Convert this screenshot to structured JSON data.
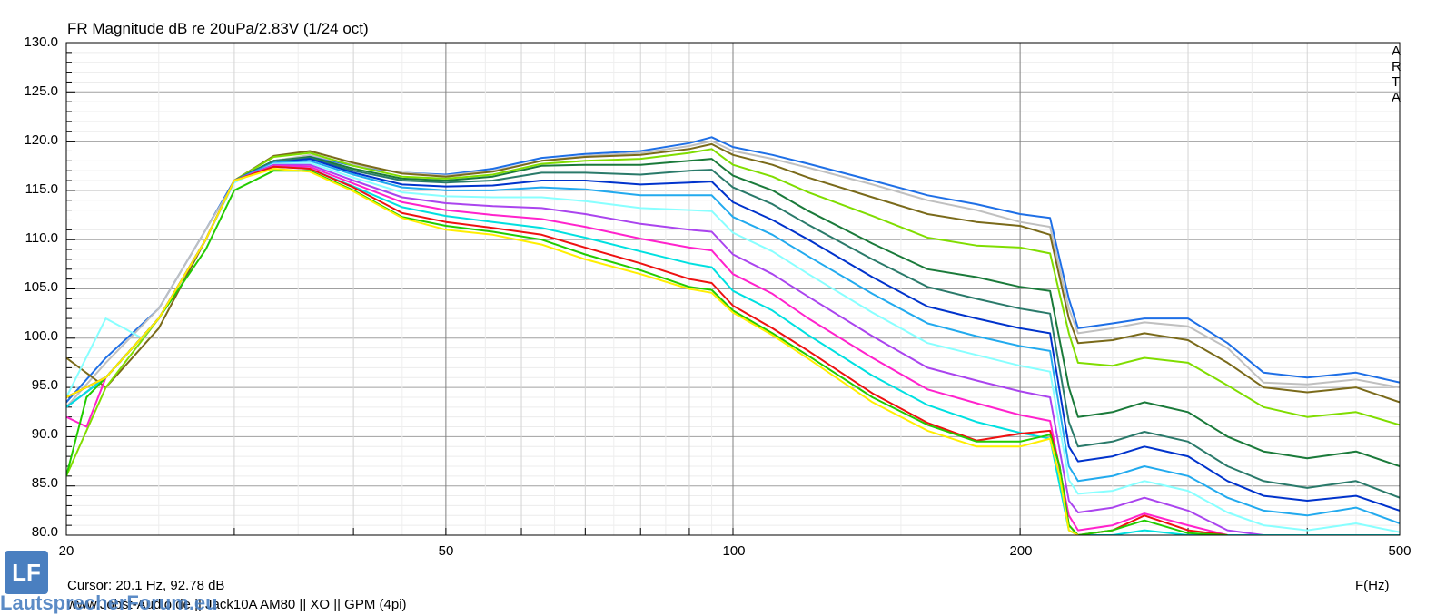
{
  "chart_data": {
    "type": "line",
    "title": "FR Magnitude dB re 20uPa/2.83V (1/24 oct)",
    "xlabel": "F(Hz)",
    "xscale": "log",
    "xlim": [
      20,
      500
    ],
    "ylim": [
      80,
      130
    ],
    "yticks": [
      "130.0",
      "125.0",
      "120.0",
      "115.0",
      "110.0",
      "105.0",
      "100.0",
      "95.0",
      "90.0",
      "85.0",
      "80.0"
    ],
    "xticks": [
      "20",
      "50",
      "100",
      "200",
      "500"
    ],
    "grid": true,
    "series": [
      {
        "color": "#1e6fe6",
        "x": [
          20,
          22,
          25,
          28,
          30,
          33,
          36,
          40,
          45,
          50,
          56,
          63,
          70,
          80,
          90,
          95,
          100,
          110,
          120,
          140,
          160,
          180,
          200,
          215,
          225,
          230,
          250,
          270,
          300,
          330,
          360,
          400,
          450,
          500
        ],
        "y": [
          93.5,
          98,
          103,
          111,
          116,
          118,
          118.5,
          117.5,
          116.8,
          116.6,
          117.2,
          118.3,
          118.7,
          119,
          119.8,
          120.4,
          119.4,
          118.6,
          117.7,
          116,
          114.5,
          113.6,
          112.6,
          112.2,
          104,
          101,
          101.5,
          102,
          102,
          99.5,
          96.5,
          96,
          96.5,
          95.5
        ]
      },
      {
        "color": "#c0c0c0",
        "x": [
          20,
          22,
          25,
          28,
          30,
          33,
          36,
          40,
          45,
          50,
          56,
          63,
          70,
          80,
          90,
          95,
          100,
          110,
          120,
          140,
          160,
          180,
          200,
          215,
          225,
          230,
          250,
          270,
          300,
          330,
          360,
          400,
          450,
          500
        ],
        "y": [
          93,
          97.5,
          103,
          111,
          115.8,
          118,
          118.6,
          117.6,
          116.8,
          116.5,
          117,
          118,
          118.5,
          118.8,
          119.5,
          120,
          119,
          118.2,
          117.3,
          115.6,
          114,
          113,
          111.8,
          111.3,
          103,
          100.5,
          101,
          101.6,
          101.2,
          99,
          95.5,
          95.3,
          95.8,
          95
        ]
      },
      {
        "color": "#7a6a1a",
        "x": [
          20,
          22,
          25,
          28,
          30,
          33,
          36,
          40,
          45,
          50,
          56,
          63,
          70,
          80,
          90,
          95,
          100,
          110,
          120,
          140,
          160,
          180,
          200,
          215,
          225,
          230,
          250,
          270,
          300,
          330,
          360,
          400,
          450,
          500
        ],
        "y": [
          98,
          95,
          101,
          110,
          116,
          118.5,
          119,
          117.8,
          116.7,
          116.4,
          116.9,
          118,
          118.4,
          118.6,
          119.2,
          119.7,
          118.6,
          117.6,
          116.3,
          114.3,
          112.6,
          111.8,
          111.4,
          110.5,
          102,
          99.5,
          99.8,
          100.5,
          99.8,
          97.5,
          95,
          94.5,
          95,
          93.5
        ]
      },
      {
        "color": "#80dd00",
        "x": [
          20,
          22,
          25,
          28,
          30,
          33,
          36,
          40,
          45,
          50,
          56,
          63,
          70,
          80,
          90,
          95,
          100,
          110,
          120,
          140,
          160,
          180,
          200,
          215,
          225,
          230,
          250,
          270,
          300,
          330,
          360,
          400,
          450,
          500
        ],
        "y": [
          86,
          95,
          102,
          110,
          116,
          118.4,
          118.8,
          117.5,
          116.4,
          116.2,
          116.6,
          117.7,
          118,
          118.2,
          118.8,
          119.2,
          117.6,
          116.4,
          114.8,
          112.4,
          110.2,
          109.4,
          109.2,
          108.6,
          100.5,
          97.5,
          97.2,
          98,
          97.5,
          95.2,
          93,
          92,
          92.5,
          91.2
        ]
      },
      {
        "color": "#1a7a3a",
        "x": [
          20,
          22,
          25,
          28,
          30,
          33,
          36,
          40,
          45,
          50,
          56,
          63,
          70,
          80,
          90,
          95,
          100,
          110,
          120,
          140,
          160,
          180,
          200,
          215,
          225,
          230,
          250,
          270,
          300,
          330,
          360,
          400,
          450,
          500
        ],
        "y": [
          94,
          96,
          102,
          110,
          116,
          118,
          118.4,
          117.2,
          116.2,
          116,
          116.4,
          117.5,
          117.6,
          117.6,
          118,
          118.2,
          116.5,
          115,
          112.9,
          109.6,
          107,
          106.2,
          105.2,
          104.8,
          95,
          92,
          92.5,
          93.5,
          92.5,
          90,
          88.5,
          87.8,
          88.5,
          87
        ]
      },
      {
        "color": "#2a7a6a",
        "x": [
          20,
          22,
          25,
          28,
          30,
          33,
          36,
          40,
          45,
          50,
          56,
          63,
          70,
          80,
          90,
          95,
          100,
          110,
          120,
          140,
          160,
          180,
          200,
          215,
          225,
          230,
          250,
          270,
          300,
          330,
          360,
          400,
          450,
          500
        ],
        "y": [
          94,
          96,
          102,
          110,
          116,
          118,
          118.3,
          117,
          116,
          115.8,
          116,
          116.8,
          116.8,
          116.6,
          117,
          117.1,
          115.3,
          113.6,
          111.5,
          108,
          105.2,
          104,
          103,
          102.5,
          91.5,
          89,
          89.5,
          90.5,
          89.5,
          87,
          85.5,
          84.8,
          85.5,
          83.8
        ]
      },
      {
        "color": "#0033cc",
        "x": [
          20,
          22,
          25,
          28,
          30,
          33,
          36,
          40,
          45,
          50,
          56,
          63,
          70,
          80,
          90,
          95,
          100,
          110,
          120,
          140,
          160,
          180,
          200,
          215,
          225,
          230,
          250,
          270,
          300,
          330,
          360,
          400,
          450,
          500
        ],
        "y": [
          94,
          96,
          102,
          110,
          116,
          117.8,
          118.2,
          116.8,
          115.6,
          115.4,
          115.5,
          116,
          116,
          115.6,
          115.8,
          115.9,
          113.8,
          112,
          110,
          106.2,
          103.2,
          102,
          101,
          100.5,
          89,
          87.5,
          88,
          89,
          88,
          85.5,
          84,
          83.5,
          84,
          82.5
        ]
      },
      {
        "color": "#22aaee",
        "x": [
          20,
          22,
          25,
          28,
          30,
          33,
          36,
          40,
          45,
          50,
          56,
          63,
          70,
          80,
          90,
          95,
          100,
          110,
          120,
          140,
          160,
          180,
          200,
          215,
          225,
          230,
          250,
          270,
          300,
          330,
          360,
          400,
          450,
          500
        ],
        "y": [
          93,
          96,
          102,
          110,
          116,
          117.8,
          118,
          116.6,
          115.3,
          115,
          115,
          115.3,
          115.1,
          114.5,
          114.5,
          114.5,
          112.3,
          110.5,
          108.3,
          104.5,
          101.5,
          100.2,
          99.2,
          98.7,
          87,
          85.5,
          86,
          87,
          86,
          83.8,
          82.5,
          82,
          82.8,
          81.2
        ]
      },
      {
        "color": "#88ffff",
        "x": [
          20,
          22,
          23,
          24,
          25,
          28,
          30,
          33,
          36,
          40,
          45,
          50,
          56,
          63,
          70,
          80,
          90,
          95,
          100,
          110,
          120,
          140,
          160,
          180,
          200,
          215,
          225,
          230,
          250,
          270,
          300,
          330,
          360,
          400,
          450,
          500
        ],
        "y": [
          94,
          102,
          101,
          100,
          102,
          110,
          115.8,
          117.7,
          117.8,
          116.3,
          114.8,
          114.4,
          114.3,
          114.3,
          113.9,
          113.2,
          113,
          112.9,
          110.7,
          108.8,
          106.5,
          102.6,
          99.5,
          98.3,
          97.2,
          96.6,
          85.6,
          84.2,
          84.5,
          85.5,
          84.5,
          82.3,
          81,
          80.5,
          81.2,
          80.3
        ]
      },
      {
        "color": "#aa44ee",
        "x": [
          20,
          22,
          25,
          28,
          30,
          33,
          36,
          40,
          45,
          50,
          56,
          63,
          70,
          80,
          90,
          95,
          100,
          110,
          120,
          140,
          160,
          180,
          200,
          215,
          225,
          230,
          250,
          270,
          300,
          330,
          360,
          400,
          450,
          500
        ],
        "y": [
          93,
          96,
          102,
          110,
          116,
          117.6,
          117.6,
          116,
          114.3,
          113.7,
          113.4,
          113.2,
          112.6,
          111.6,
          111,
          110.8,
          108.5,
          106.5,
          104.2,
          100.2,
          97,
          95.7,
          94.6,
          94,
          83.5,
          82.3,
          82.8,
          83.8,
          82.5,
          80.5,
          80,
          80,
          80,
          80
        ]
      },
      {
        "color": "#ff22cc",
        "x": [
          20,
          21,
          22,
          25,
          28,
          30,
          33,
          36,
          40,
          45,
          50,
          56,
          63,
          70,
          80,
          90,
          95,
          100,
          110,
          120,
          140,
          160,
          180,
          200,
          215,
          225,
          230,
          250,
          270,
          300,
          330,
          360,
          400,
          450,
          500
        ],
        "y": [
          92,
          91,
          96,
          102,
          110,
          116,
          117.5,
          117.4,
          115.7,
          113.8,
          113,
          112.5,
          112.1,
          111.3,
          110.1,
          109.2,
          108.9,
          106.5,
          104.5,
          102,
          98,
          94.8,
          93.4,
          92.2,
          91.6,
          82,
          80.5,
          81,
          82.2,
          81,
          80,
          80,
          80,
          80,
          80
        ]
      },
      {
        "color": "#00e0e0",
        "x": [
          20,
          22,
          25,
          28,
          30,
          33,
          36,
          40,
          45,
          50,
          56,
          63,
          70,
          80,
          90,
          95,
          100,
          110,
          120,
          140,
          160,
          180,
          200,
          215,
          225,
          230,
          250,
          270,
          300,
          330,
          360,
          400,
          450,
          500
        ],
        "y": [
          93,
          96,
          102,
          110,
          116,
          117.4,
          117.2,
          115.4,
          113.3,
          112.4,
          111.8,
          111.2,
          110.2,
          108.8,
          107.6,
          107.2,
          104.8,
          102.8,
          100.3,
          96.2,
          93.2,
          91.5,
          90.4,
          89.8,
          80.5,
          80,
          80,
          80.5,
          80,
          80,
          80,
          80,
          80,
          80
        ]
      },
      {
        "color": "#ee1111",
        "x": [
          20,
          22,
          25,
          28,
          30,
          33,
          36,
          40,
          45,
          50,
          56,
          63,
          70,
          80,
          90,
          95,
          100,
          110,
          120,
          140,
          160,
          180,
          200,
          215,
          220,
          225,
          230,
          250,
          270,
          300,
          330
        ],
        "y": [
          94,
          96,
          102,
          110,
          116,
          117.4,
          117.2,
          115.3,
          112.7,
          111.8,
          111.2,
          110.5,
          109.2,
          107.6,
          106,
          105.6,
          103.3,
          101,
          98.7,
          94.4,
          91.4,
          89.6,
          90.3,
          90.6,
          87,
          81,
          80,
          80.5,
          82,
          80.5,
          80
        ]
      },
      {
        "color": "#22cc00",
        "x": [
          20,
          21,
          22,
          25,
          28,
          30,
          33,
          36,
          40,
          45,
          50,
          56,
          63,
          70,
          80,
          90,
          95,
          100,
          110,
          120,
          140,
          160,
          180,
          200,
          215,
          220,
          225,
          230,
          250,
          270,
          300,
          330
        ],
        "y": [
          86,
          94,
          96,
          102,
          109,
          115,
          117,
          117,
          115,
          112.3,
          111.4,
          110.8,
          110,
          108.5,
          106.9,
          105.2,
          104.9,
          102.8,
          100.5,
          98.2,
          94,
          91.2,
          89.5,
          89.5,
          90.2,
          87,
          81,
          80,
          80.5,
          81.5,
          80.2,
          80
        ]
      },
      {
        "color": "#ffee00",
        "x": [
          20,
          22,
          25,
          28,
          30,
          33,
          36,
          40,
          45,
          50,
          56,
          63,
          70,
          80,
          90,
          95,
          100,
          110,
          120,
          140,
          160,
          180,
          200,
          215,
          220,
          225,
          230
        ],
        "y": [
          94,
          96,
          102,
          110,
          116,
          117.2,
          116.9,
          114.9,
          112.2,
          111,
          110.5,
          109.5,
          108,
          106.5,
          105,
          104.6,
          102.6,
          100.3,
          97.9,
          93.5,
          90.6,
          89,
          89,
          89.8,
          86,
          80.5,
          80
        ]
      }
    ]
  },
  "labels": {
    "arta": [
      "A",
      "R",
      "T",
      "A"
    ],
    "cursor": "Cursor: 20.1 Hz, 92.78 dB",
    "footer": "www.Jobst-Audio.de  ||  Jack10A AM80  ||  XO  ||  GPM (4pi)",
    "logo": "LF",
    "site": "LautsprecherForum.eu"
  }
}
